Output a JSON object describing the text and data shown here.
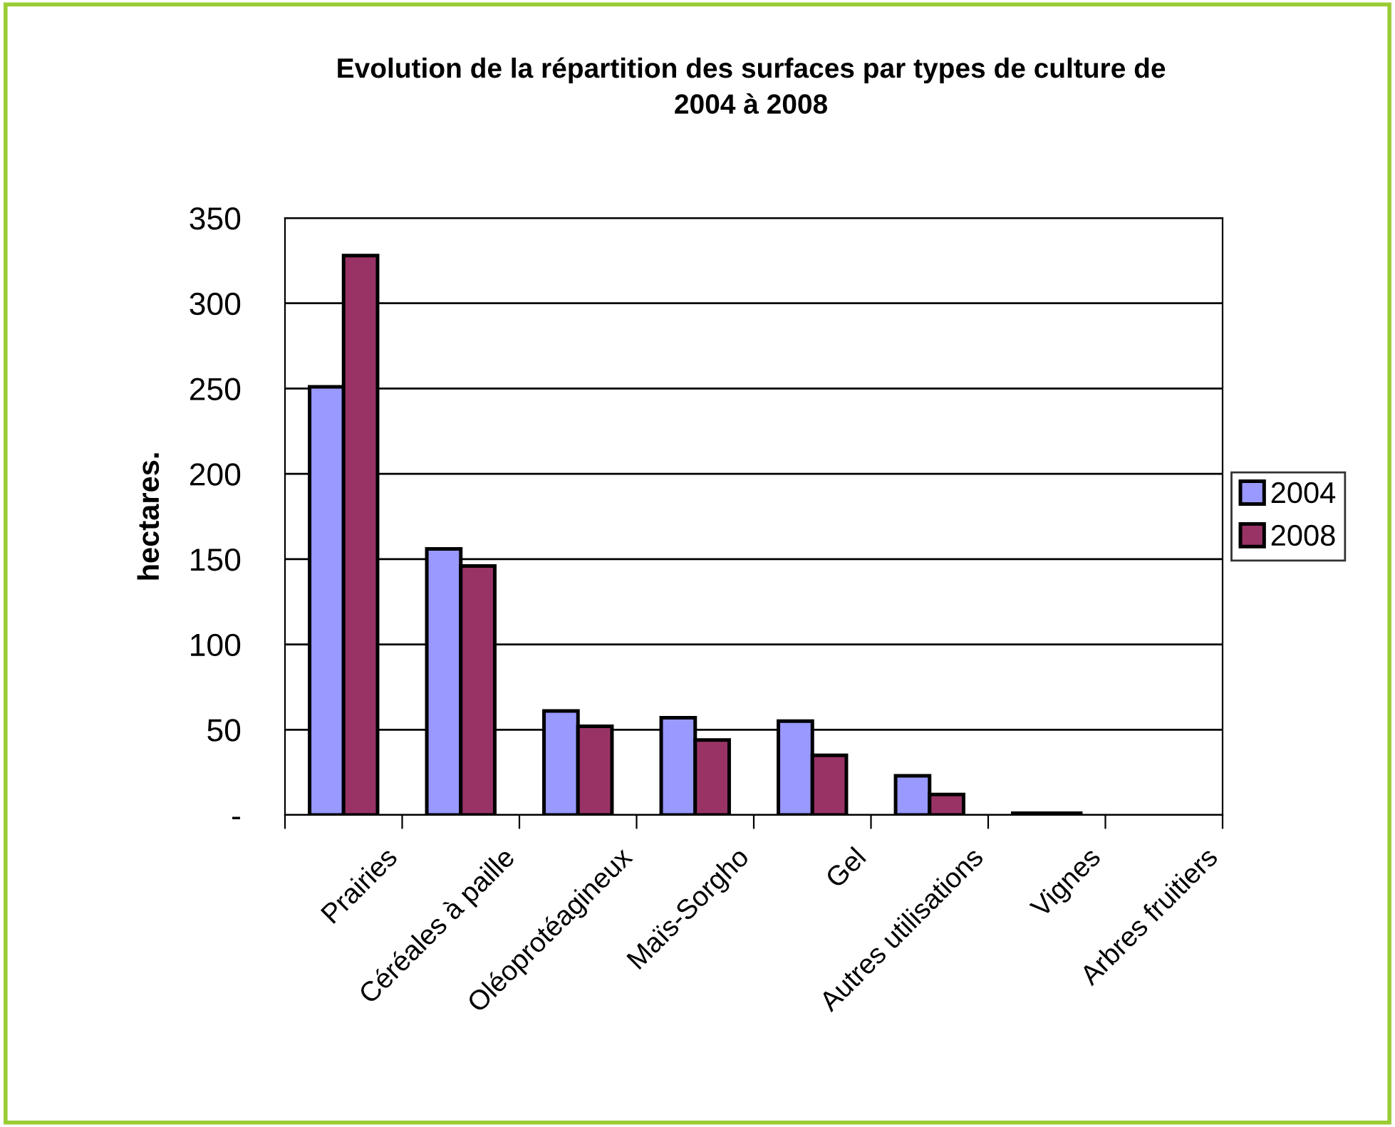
{
  "chart_data": {
    "type": "bar",
    "title": "Evolution de la répartition des surfaces par types de culture de\n2004 à 2008",
    "ylabel": "hectares.",
    "categories": [
      "Prairies",
      "Céréales à paille",
      "Oléoprotéagineux",
      "Maïs-Sorgho",
      "Gel",
      "Autres utilisations",
      "Vignes",
      "Arbres fruitiers"
    ],
    "series": [
      {
        "name": "2004",
        "color": "#9999ff",
        "values": [
          251,
          156,
          61,
          57,
          55,
          23,
          1,
          null
        ]
      },
      {
        "name": "2008",
        "color": "#993366",
        "values": [
          328,
          146,
          52,
          44,
          35,
          12,
          1,
          null
        ]
      }
    ],
    "ylim": [
      0,
      350
    ],
    "yticks": [
      {
        "value": 0,
        "label": "-"
      },
      50,
      100,
      150,
      200,
      250,
      300,
      350
    ],
    "grid": "y",
    "legend": "right"
  }
}
